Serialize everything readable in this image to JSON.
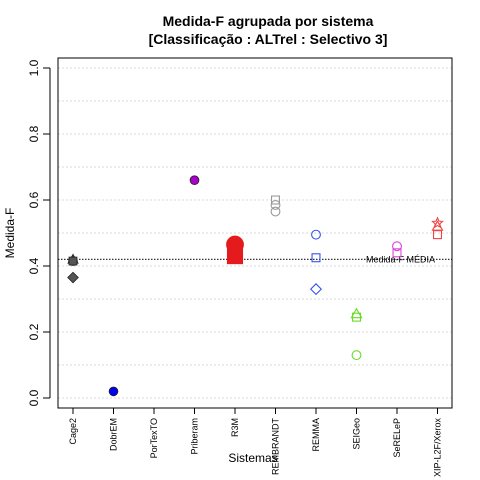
{
  "chart_data": {
    "type": "scatter",
    "title": "Medida-F agrupada por sistema",
    "subtitle": "[Classificação : ALTrel : Selectivo 3]",
    "xlabel": "Sistemas",
    "ylabel": "Medida-F",
    "ylim": [
      0.0,
      1.0
    ],
    "yticks": [
      "0.0",
      "0.2",
      "0.4",
      "0.6",
      "0.8",
      "1.0"
    ],
    "grid": true,
    "categories": [
      "Cage2",
      "DobrEM",
      "PorTexTO",
      "Priberam",
      "R3M",
      "REMBRANDT",
      "REMMA",
      "SEIGeo",
      "SeRELeP",
      "XIP-L2F/Xerox"
    ],
    "average": {
      "label": "Medida-F MÉDIA",
      "value": 0.42
    },
    "series": [
      {
        "color": "#555555",
        "points": [
          {
            "x": "Cage2",
            "y": 0.42,
            "shape": "triangle",
            "style": "filled",
            "size": "small"
          },
          {
            "x": "Cage2",
            "y": 0.415,
            "shape": "circle",
            "style": "filled",
            "size": "small"
          },
          {
            "x": "Cage2",
            "y": 0.415,
            "shape": "square",
            "style": "filled",
            "size": "small"
          },
          {
            "x": "Cage2",
            "y": 0.365,
            "shape": "diamond",
            "style": "filled",
            "size": "small"
          }
        ]
      },
      {
        "color": "#0000ee",
        "points": [
          {
            "x": "DobrEM",
            "y": 0.02,
            "shape": "circle",
            "style": "filled",
            "size": "small"
          }
        ]
      },
      {
        "color": "#aa00cc",
        "points": [
          {
            "x": "Priberam",
            "y": 0.66,
            "shape": "circle",
            "style": "filled",
            "size": "small"
          }
        ]
      },
      {
        "color": "#e41a1c",
        "points": [
          {
            "x": "R3M",
            "y": 0.465,
            "shape": "circle",
            "style": "filled",
            "size": "large"
          },
          {
            "x": "R3M",
            "y": 0.43,
            "shape": "square",
            "style": "filled",
            "size": "large"
          }
        ]
      },
      {
        "color": "#999999",
        "points": [
          {
            "x": "REMBRANDT",
            "y": 0.6,
            "shape": "square",
            "style": "open",
            "size": "small"
          },
          {
            "x": "REMBRANDT",
            "y": 0.585,
            "shape": "circle",
            "style": "open",
            "size": "small"
          },
          {
            "x": "REMBRANDT",
            "y": 0.565,
            "shape": "circle",
            "style": "open",
            "size": "small"
          }
        ]
      },
      {
        "color": "#3355ee",
        "points": [
          {
            "x": "REMMA",
            "y": 0.495,
            "shape": "circle",
            "style": "open",
            "size": "small"
          },
          {
            "x": "REMMA",
            "y": 0.425,
            "shape": "square",
            "style": "open",
            "size": "small"
          },
          {
            "x": "REMMA",
            "y": 0.33,
            "shape": "diamond",
            "style": "open",
            "size": "small"
          }
        ]
      },
      {
        "color": "#66dd22",
        "points": [
          {
            "x": "SEIGeo",
            "y": 0.255,
            "shape": "triangle",
            "style": "open",
            "size": "small"
          },
          {
            "x": "SEIGeo",
            "y": 0.245,
            "shape": "square",
            "style": "open",
            "size": "small"
          },
          {
            "x": "SEIGeo",
            "y": 0.13,
            "shape": "circle",
            "style": "open",
            "size": "small"
          }
        ]
      },
      {
        "color": "#dd44dd",
        "points": [
          {
            "x": "SeRELeP",
            "y": 0.46,
            "shape": "circle",
            "style": "open",
            "size": "small"
          },
          {
            "x": "SeRELeP",
            "y": 0.44,
            "shape": "square",
            "style": "open",
            "size": "small"
          }
        ]
      },
      {
        "color": "#ee4444",
        "points": [
          {
            "x": "XIP-L2F/Xerox",
            "y": 0.53,
            "shape": "star",
            "style": "open",
            "size": "small"
          },
          {
            "x": "XIP-L2F/Xerox",
            "y": 0.52,
            "shape": "triangle",
            "style": "open",
            "size": "small"
          },
          {
            "x": "XIP-L2F/Xerox",
            "y": 0.495,
            "shape": "square",
            "style": "open",
            "size": "small"
          }
        ]
      }
    ]
  }
}
